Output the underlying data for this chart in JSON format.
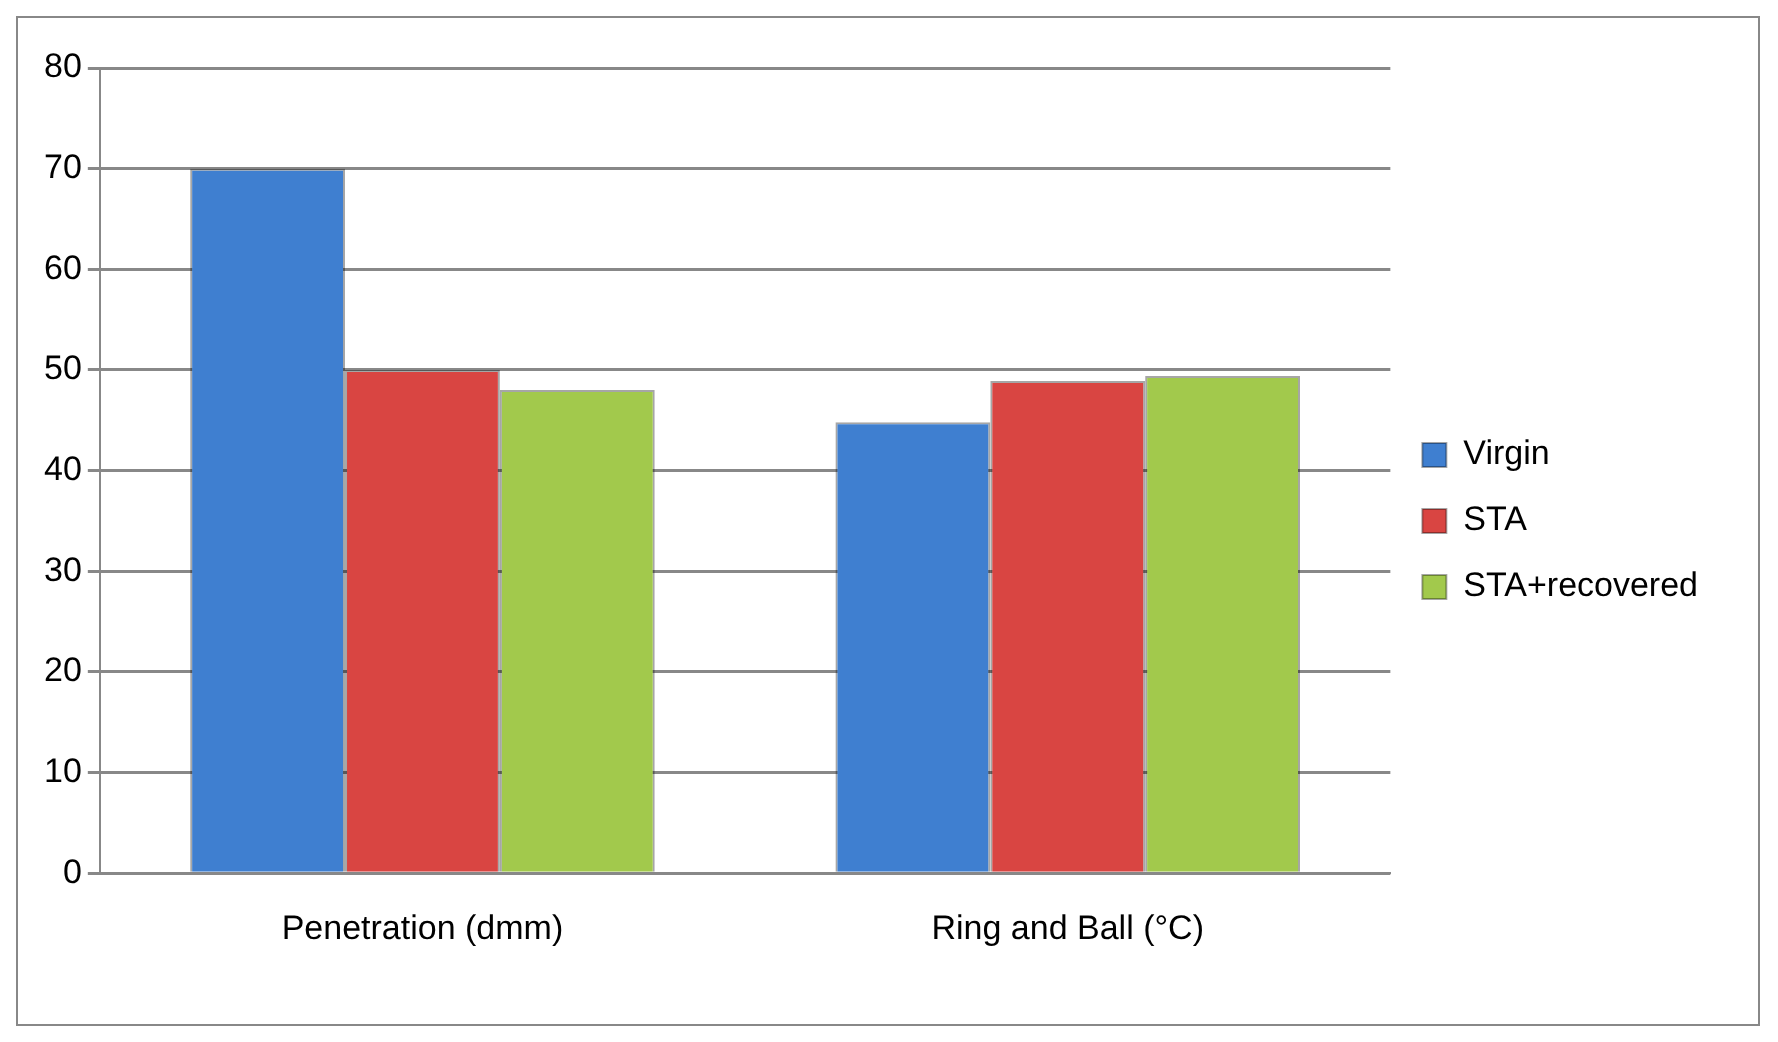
{
  "chart_data": {
    "type": "bar",
    "categories": [
      "Penetration (dmm)",
      "Ring and Ball (°C)"
    ],
    "series": [
      {
        "name": "Virgin",
        "color": "#3f7fd0",
        "values": [
          70,
          44.8
        ]
      },
      {
        "name": "STA",
        "color": "#d94542",
        "values": [
          50,
          48.9
        ]
      },
      {
        "name": "STA+recovered",
        "color": "#a2c94c",
        "values": [
          48,
          49.4
        ]
      }
    ],
    "ylim": [
      0,
      80
    ],
    "yticks": [
      0,
      10,
      20,
      30,
      40,
      50,
      60,
      70,
      80
    ],
    "grid": "y",
    "legend": "right"
  }
}
